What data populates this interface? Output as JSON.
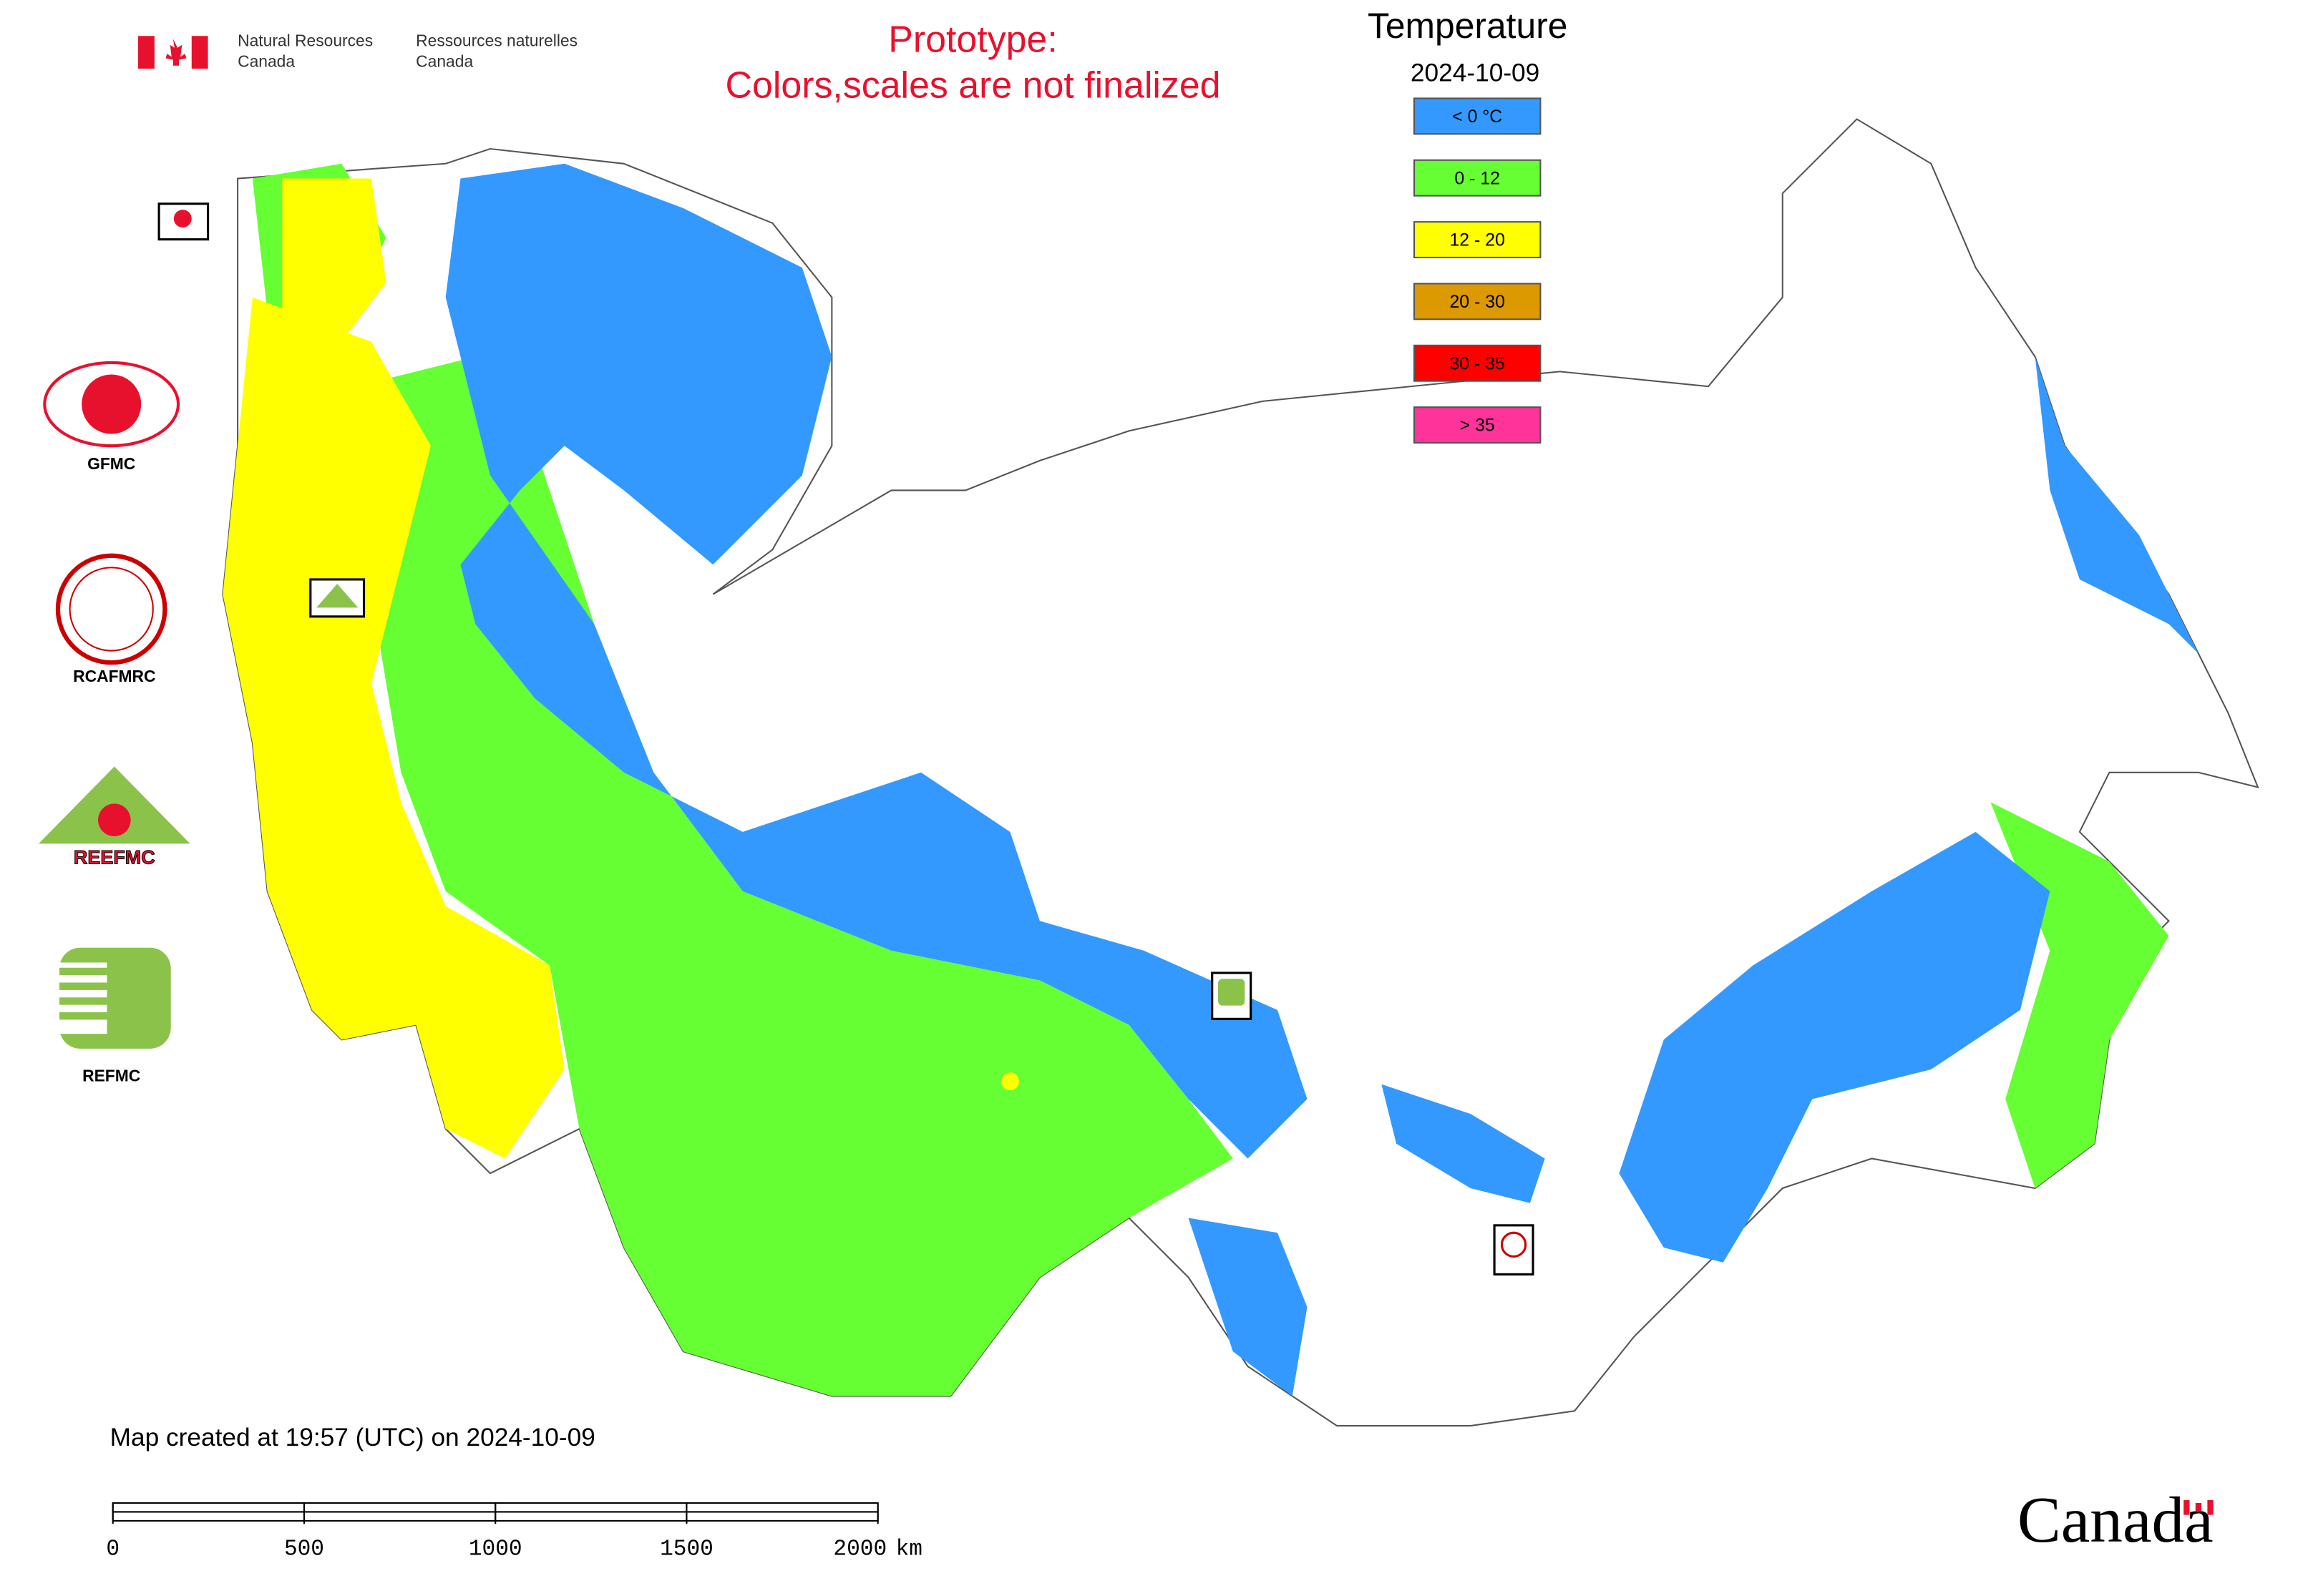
{
  "header": {
    "agency_en_line1": "Natural Resources",
    "agency_en_line2": "Canada",
    "agency_fr_line1": "Ressources naturelles",
    "agency_fr_line2": "Canada"
  },
  "notice": {
    "line1": "Prototype:",
    "line2": "Colors,scales are not finalized"
  },
  "legend": {
    "title": "Temperature",
    "date": "2024-10-09",
    "items": [
      {
        "label": "< 0 °C",
        "color": "#3399ff"
      },
      {
        "label": "0 - 12",
        "color": "#66ff33"
      },
      {
        "label": "12 - 20",
        "color": "#ffff00"
      },
      {
        "label": "20 - 30",
        "color": "#dd9900"
      },
      {
        "label": "30 - 35",
        "color": "#ff0000"
      },
      {
        "label": "> 35",
        "color": "#ff3399"
      }
    ]
  },
  "partners": [
    "GFMC",
    "RCAFMRC",
    "REEFMC",
    "REFMC"
  ],
  "footer": {
    "created": "Map created at 19:57 (UTC) on 2024-10-09",
    "scale_bar": {
      "ticks": [
        0,
        500,
        1000,
        1500,
        2000
      ],
      "unit": "km"
    },
    "wordmark": "Canada"
  }
}
